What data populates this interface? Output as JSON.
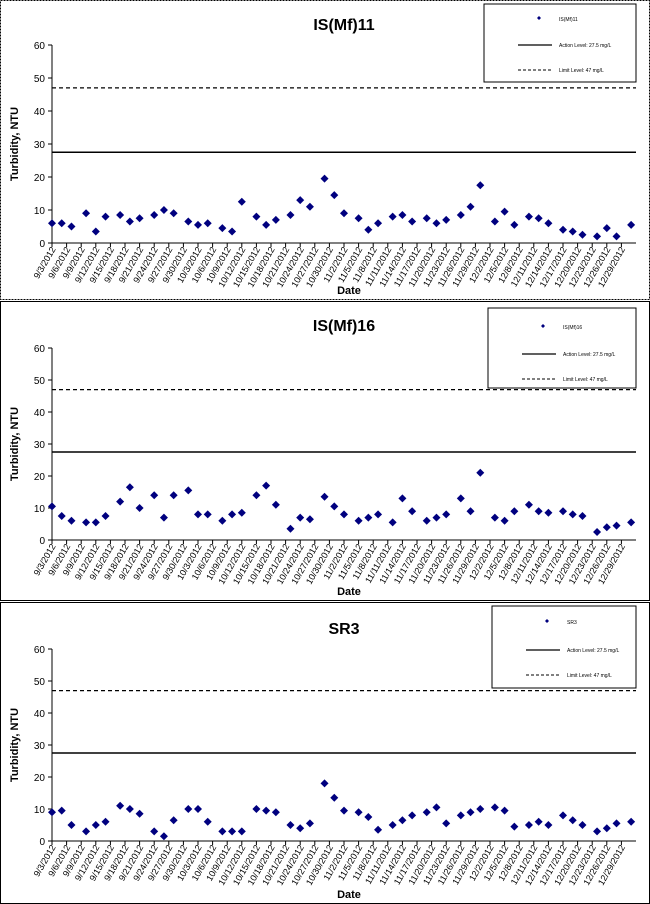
{
  "chart_data": [
    {
      "type": "scatter",
      "title": "IS(Mf)11",
      "xlabel": "Date",
      "ylabel": "Turbidity, NTU",
      "ylim": [
        0,
        60
      ],
      "yticks": [
        0,
        10,
        20,
        30,
        40,
        50,
        60
      ],
      "grid": false,
      "legend_position": "top-right",
      "legend": {
        "series": "IS(Mf)11",
        "action": "Action Level: 27.5 mg/L",
        "limit": "Limit Level: 47 mg/L"
      },
      "lines": {
        "action": 27.5,
        "limit": 47
      },
      "x_tick_labels": [
        "9/3/2012",
        "9/6/2012",
        "9/9/2012",
        "9/12/2012",
        "9/15/2012",
        "9/18/2012",
        "9/21/2012",
        "9/24/2012",
        "9/27/2012",
        "9/30/2012",
        "10/3/2012",
        "10/6/2012",
        "10/9/2012",
        "10/12/2012",
        "10/15/2012",
        "10/18/2012",
        "10/21/2012",
        "10/24/2012",
        "10/27/2012",
        "10/30/2012",
        "11/2/2012",
        "11/5/2012",
        "11/8/2012",
        "11/11/2012",
        "11/14/2012",
        "11/17/2012",
        "11/20/2012",
        "11/23/2012",
        "11/26/2012",
        "11/29/2012",
        "12/2/2012",
        "12/5/2012",
        "12/8/2012",
        "12/11/2012",
        "12/14/2012",
        "12/17/2012",
        "12/20/2012",
        "12/23/2012",
        "12/26/2012",
        "12/29/2012"
      ],
      "points": [
        [
          "9/3/2012",
          6
        ],
        [
          "9/5/2012",
          6
        ],
        [
          "9/7/2012",
          5
        ],
        [
          "9/10/2012",
          9
        ],
        [
          "9/12/2012",
          3.5
        ],
        [
          "9/14/2012",
          8
        ],
        [
          "9/17/2012",
          8.5
        ],
        [
          "9/19/2012",
          6.5
        ],
        [
          "9/21/2012",
          7.5
        ],
        [
          "9/24/2012",
          8.5
        ],
        [
          "9/26/2012",
          10
        ],
        [
          "9/28/2012",
          9
        ],
        [
          "10/1/2012",
          6.5
        ],
        [
          "10/3/2012",
          5.5
        ],
        [
          "10/5/2012",
          6
        ],
        [
          "10/8/2012",
          4.5
        ],
        [
          "10/10/2012",
          3.5
        ],
        [
          "10/12/2012",
          12.5
        ],
        [
          "10/15/2012",
          8
        ],
        [
          "10/17/2012",
          5.5
        ],
        [
          "10/19/2012",
          7
        ],
        [
          "10/22/2012",
          8.5
        ],
        [
          "10/24/2012",
          13
        ],
        [
          "10/26/2012",
          11
        ],
        [
          "10/29/2012",
          19.5
        ],
        [
          "10/31/2012",
          14.5
        ],
        [
          "11/2/2012",
          9
        ],
        [
          "11/5/2012",
          7.5
        ],
        [
          "11/7/2012",
          4
        ],
        [
          "11/9/2012",
          6
        ],
        [
          "11/12/2012",
          8
        ],
        [
          "11/14/2012",
          8.5
        ],
        [
          "11/16/2012",
          6.5
        ],
        [
          "11/19/2012",
          7.5
        ],
        [
          "11/21/2012",
          6
        ],
        [
          "11/23/2012",
          7
        ],
        [
          "11/26/2012",
          8.5
        ],
        [
          "11/28/2012",
          11
        ],
        [
          "11/30/2012",
          17.5
        ],
        [
          "12/3/2012",
          6.5
        ],
        [
          "12/5/2012",
          9.5
        ],
        [
          "12/7/2012",
          5.5
        ],
        [
          "12/10/2012",
          8
        ],
        [
          "12/12/2012",
          7.5
        ],
        [
          "12/14/2012",
          6
        ],
        [
          "12/17/2012",
          4
        ],
        [
          "12/19/2012",
          3.5
        ],
        [
          "12/21/2012",
          2.5
        ],
        [
          "12/24/2012",
          2
        ],
        [
          "12/26/2012",
          4.5
        ],
        [
          "12/28/2012",
          2
        ],
        [
          "12/31/2012",
          5.5
        ]
      ]
    },
    {
      "type": "scatter",
      "title": "IS(Mf)16",
      "xlabel": "Date",
      "ylabel": "Turbidity, NTU",
      "ylim": [
        0,
        60
      ],
      "yticks": [
        0,
        10,
        20,
        30,
        40,
        50,
        60
      ],
      "grid": false,
      "legend_position": "top-right",
      "legend": {
        "series": "IS(Mf)16",
        "action": "Action Level: 27.5 mg/L",
        "limit": "Limit Level: 47 mg/L"
      },
      "lines": {
        "action": 27.5,
        "limit": 47
      },
      "x_tick_labels": [
        "9/3/2012",
        "9/6/2012",
        "9/9/2012",
        "9/12/2012",
        "9/15/2012",
        "9/18/2012",
        "9/21/2012",
        "9/24/2012",
        "9/27/2012",
        "9/30/2012",
        "10/3/2012",
        "10/6/2012",
        "10/9/2012",
        "10/12/2012",
        "10/15/2012",
        "10/18/2012",
        "10/21/2012",
        "10/24/2012",
        "10/27/2012",
        "10/30/2012",
        "11/2/2012",
        "11/5/2012",
        "11/8/2012",
        "11/11/2012",
        "11/14/2012",
        "11/17/2012",
        "11/20/2012",
        "11/23/2012",
        "11/26/2012",
        "11/29/2012",
        "12/2/2012",
        "12/5/2012",
        "12/8/2012",
        "12/11/2012",
        "12/14/2012",
        "12/17/2012",
        "12/20/2012",
        "12/23/2012",
        "12/26/2012",
        "12/29/2012"
      ],
      "points": [
        [
          "9/3/2012",
          10.5
        ],
        [
          "9/5/2012",
          7.5
        ],
        [
          "9/7/2012",
          6
        ],
        [
          "9/10/2012",
          5.5
        ],
        [
          "9/12/2012",
          5.5
        ],
        [
          "9/14/2012",
          7.5
        ],
        [
          "9/17/2012",
          12
        ],
        [
          "9/19/2012",
          16.5
        ],
        [
          "9/21/2012",
          10
        ],
        [
          "9/24/2012",
          14
        ],
        [
          "9/26/2012",
          7
        ],
        [
          "9/28/2012",
          14
        ],
        [
          "10/1/2012",
          15.5
        ],
        [
          "10/3/2012",
          8
        ],
        [
          "10/5/2012",
          8
        ],
        [
          "10/8/2012",
          6
        ],
        [
          "10/10/2012",
          8
        ],
        [
          "10/12/2012",
          8.5
        ],
        [
          "10/15/2012",
          14
        ],
        [
          "10/17/2012",
          17
        ],
        [
          "10/19/2012",
          11
        ],
        [
          "10/22/2012",
          3.5
        ],
        [
          "10/24/2012",
          7
        ],
        [
          "10/26/2012",
          6.5
        ],
        [
          "10/29/2012",
          13.5
        ],
        [
          "10/31/2012",
          10.5
        ],
        [
          "11/2/2012",
          8
        ],
        [
          "11/5/2012",
          6
        ],
        [
          "11/7/2012",
          7
        ],
        [
          "11/9/2012",
          8
        ],
        [
          "11/12/2012",
          5.5
        ],
        [
          "11/14/2012",
          13
        ],
        [
          "11/16/2012",
          9
        ],
        [
          "11/19/2012",
          6
        ],
        [
          "11/21/2012",
          7
        ],
        [
          "11/23/2012",
          8
        ],
        [
          "11/26/2012",
          13
        ],
        [
          "11/28/2012",
          9
        ],
        [
          "11/30/2012",
          21
        ],
        [
          "12/3/2012",
          7
        ],
        [
          "12/5/2012",
          6
        ],
        [
          "12/7/2012",
          9
        ],
        [
          "12/10/2012",
          11
        ],
        [
          "12/12/2012",
          9
        ],
        [
          "12/14/2012",
          8.5
        ],
        [
          "12/17/2012",
          9
        ],
        [
          "12/19/2012",
          8
        ],
        [
          "12/21/2012",
          7.5
        ],
        [
          "12/24/2012",
          2.5
        ],
        [
          "12/26/2012",
          4
        ],
        [
          "12/28/2012",
          4.5
        ],
        [
          "12/31/2012",
          5.5
        ]
      ]
    },
    {
      "type": "scatter",
      "title": "SR3",
      "xlabel": "Date",
      "ylabel": "Turbidity, NTU",
      "ylim": [
        0,
        60
      ],
      "yticks": [
        0,
        10,
        20,
        30,
        40,
        50,
        60
      ],
      "grid": false,
      "legend_position": "top-right",
      "legend": {
        "series": "SR3",
        "action": "Action Level: 27.5 mg/L",
        "limit": "Limit Level: 47 mg/L"
      },
      "lines": {
        "action": 27.5,
        "limit": 47
      },
      "x_tick_labels": [
        "9/3/2012",
        "9/6/2012",
        "9/9/2012",
        "9/12/2012",
        "9/15/2012",
        "9/18/2012",
        "9/21/2012",
        "9/24/2012",
        "9/27/2012",
        "9/30/2012",
        "10/3/2012",
        "10/6/2012",
        "10/9/2012",
        "10/12/2012",
        "10/15/2012",
        "10/18/2012",
        "10/21/2012",
        "10/24/2012",
        "10/27/2012",
        "10/30/2012",
        "11/2/2012",
        "11/5/2012",
        "11/8/2012",
        "11/11/2012",
        "11/14/2012",
        "11/17/2012",
        "11/20/2012",
        "11/23/2012",
        "11/26/2012",
        "11/29/2012",
        "12/2/2012",
        "12/5/2012",
        "12/8/2012",
        "12/11/2012",
        "12/14/2012",
        "12/17/2012",
        "12/20/2012",
        "12/23/2012",
        "12/26/2012",
        "12/29/2012"
      ],
      "points": [
        [
          "9/3/2012",
          9
        ],
        [
          "9/5/2012",
          9.5
        ],
        [
          "9/7/2012",
          5
        ],
        [
          "9/10/2012",
          3
        ],
        [
          "9/12/2012",
          5
        ],
        [
          "9/14/2012",
          6
        ],
        [
          "9/17/2012",
          11
        ],
        [
          "9/19/2012",
          10
        ],
        [
          "9/21/2012",
          8.5
        ],
        [
          "9/24/2012",
          3
        ],
        [
          "9/26/2012",
          1.5
        ],
        [
          "9/28/2012",
          6.5
        ],
        [
          "10/1/2012",
          10
        ],
        [
          "10/3/2012",
          10
        ],
        [
          "10/5/2012",
          6
        ],
        [
          "10/8/2012",
          3
        ],
        [
          "10/10/2012",
          3
        ],
        [
          "10/12/2012",
          3
        ],
        [
          "10/15/2012",
          10
        ],
        [
          "10/17/2012",
          9.5
        ],
        [
          "10/19/2012",
          9
        ],
        [
          "10/22/2012",
          5
        ],
        [
          "10/24/2012",
          4
        ],
        [
          "10/26/2012",
          5.5
        ],
        [
          "10/29/2012",
          18
        ],
        [
          "10/31/2012",
          13.5
        ],
        [
          "11/2/2012",
          9.5
        ],
        [
          "11/5/2012",
          9
        ],
        [
          "11/7/2012",
          7.5
        ],
        [
          "11/9/2012",
          3.5
        ],
        [
          "11/12/2012",
          5
        ],
        [
          "11/14/2012",
          6.5
        ],
        [
          "11/16/2012",
          8
        ],
        [
          "11/19/2012",
          9
        ],
        [
          "11/21/2012",
          10.5
        ],
        [
          "11/23/2012",
          5.5
        ],
        [
          "11/26/2012",
          8
        ],
        [
          "11/28/2012",
          9
        ],
        [
          "11/30/2012",
          10
        ],
        [
          "12/3/2012",
          10.5
        ],
        [
          "12/5/2012",
          9.5
        ],
        [
          "12/7/2012",
          4.5
        ],
        [
          "12/10/2012",
          5
        ],
        [
          "12/12/2012",
          6
        ],
        [
          "12/14/2012",
          5
        ],
        [
          "12/17/2012",
          8
        ],
        [
          "12/19/2012",
          6.5
        ],
        [
          "12/21/2012",
          5
        ],
        [
          "12/24/2012",
          3
        ],
        [
          "12/26/2012",
          4
        ],
        [
          "12/28/2012",
          5.5
        ],
        [
          "12/31/2012",
          6
        ]
      ]
    }
  ],
  "colors": {
    "marker": "#00007f",
    "line": "#000000",
    "text": "#000000",
    "border": "#000000"
  }
}
